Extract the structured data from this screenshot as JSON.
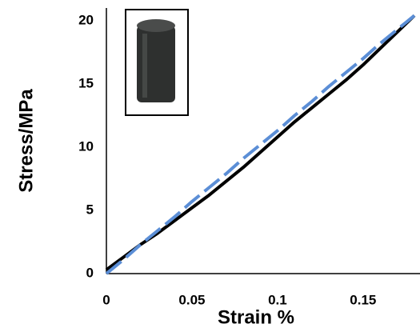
{
  "chart_data": {
    "type": "line",
    "xlabel": "Strain %",
    "ylabel": "Stress/MPa",
    "x": [
      0,
      0.01,
      0.02,
      0.03,
      0.04,
      0.05,
      0.06,
      0.07,
      0.08,
      0.09,
      0.1,
      0.11,
      0.12,
      0.13,
      0.14,
      0.15,
      0.16,
      0.17,
      0.18
    ],
    "series": [
      {
        "color": "#000000",
        "linestyle": "solid",
        "values": [
          0.3,
          1.3,
          2.3,
          3.2,
          4.2,
          5.2,
          6.2,
          7.3,
          8.4,
          9.6,
          10.8,
          12.0,
          13.1,
          14.2,
          15.3,
          16.5,
          17.8,
          19.1,
          20.4
        ]
      },
      {
        "color": "#5b8ed6",
        "linestyle": "dashed",
        "values": [
          0,
          1.1,
          2.3,
          3.4,
          4.5,
          5.7,
          6.8,
          7.9,
          9.1,
          10.2,
          11.3,
          12.5,
          13.6,
          14.8,
          15.9,
          17.0,
          18.2,
          19.3,
          20.4
        ]
      }
    ],
    "xlim": [
      0,
      0.18
    ],
    "ylim": [
      0,
      21
    ],
    "xticks": [
      0,
      0.05,
      0.1,
      0.15
    ],
    "yticks": [
      0,
      5,
      10,
      15,
      20
    ],
    "grid": false
  }
}
